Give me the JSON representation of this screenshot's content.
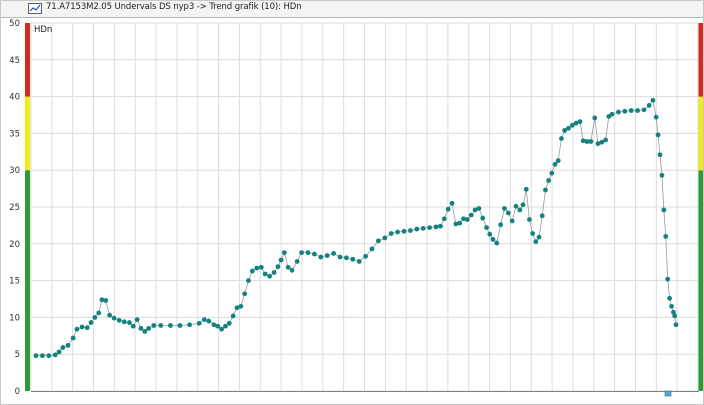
{
  "window": {
    "title": "71.A7153M2.05 Undervals DS nyp3 -> Trend grafik (10): HDn",
    "icon": "trend-chart-icon"
  },
  "colors": {
    "data_point": "#14837f",
    "data_line": "#9a9a9a",
    "grid": "#dcdcdc",
    "alarm_high": "#d42a1e",
    "warning": "#f2ea1a",
    "normal": "#2e9c32",
    "marker": "#5aa6c8"
  },
  "chart_data": {
    "type": "line",
    "ylabel": "HDn",
    "ylim": [
      0,
      50
    ],
    "yticks": [
      "0",
      "5",
      "10",
      "15",
      "20",
      "25",
      "30",
      "35",
      "40",
      "45",
      "50"
    ],
    "bands": [
      {
        "from": 0,
        "to": 30,
        "color": "#2e9c32"
      },
      {
        "from": 30,
        "to": 40,
        "color": "#f2ea1a"
      },
      {
        "from": 40,
        "to": 50,
        "color": "#d42a1e"
      }
    ],
    "xlim": [
      0,
      100
    ],
    "points": [
      [
        0,
        4.8
      ],
      [
        1,
        4.8
      ],
      [
        2,
        4.8
      ],
      [
        3,
        4.9
      ],
      [
        3.6,
        5.3
      ],
      [
        4.2,
        5.9
      ],
      [
        5,
        6.2
      ],
      [
        5.8,
        7.2
      ],
      [
        6.4,
        8.4
      ],
      [
        7.2,
        8.7
      ],
      [
        8,
        8.6
      ],
      [
        8.6,
        9.3
      ],
      [
        9.2,
        10
      ],
      [
        9.8,
        10.6
      ],
      [
        10.3,
        12.4
      ],
      [
        10.9,
        12.3
      ],
      [
        11.5,
        10.3
      ],
      [
        12.2,
        9.9
      ],
      [
        13,
        9.6
      ],
      [
        13.8,
        9.4
      ],
      [
        14.6,
        9.3
      ],
      [
        15.2,
        8.8
      ],
      [
        15.8,
        9.7
      ],
      [
        16.4,
        8.5
      ],
      [
        17,
        8.1
      ],
      [
        17.6,
        8.5
      ],
      [
        18.4,
        8.9
      ],
      [
        19.5,
        8.9
      ],
      [
        21,
        8.9
      ],
      [
        22.5,
        8.9
      ],
      [
        24,
        9
      ],
      [
        25.5,
        9.2
      ],
      [
        26.3,
        9.7
      ],
      [
        27,
        9.5
      ],
      [
        27.8,
        9
      ],
      [
        28.4,
        8.8
      ],
      [
        29,
        8.4
      ],
      [
        29.6,
        8.8
      ],
      [
        30.2,
        9.2
      ],
      [
        30.8,
        10.2
      ],
      [
        31.4,
        11.3
      ],
      [
        32,
        11.5
      ],
      [
        32.6,
        13.2
      ],
      [
        33.2,
        15
      ],
      [
        33.8,
        16.3
      ],
      [
        34.5,
        16.7
      ],
      [
        35.2,
        16.8
      ],
      [
        35.8,
        15.9
      ],
      [
        36.5,
        15.6
      ],
      [
        37.2,
        16.1
      ],
      [
        37.8,
        16.9
      ],
      [
        38.3,
        17.8
      ],
      [
        38.8,
        18.8
      ],
      [
        39.4,
        16.8
      ],
      [
        40,
        16.4
      ],
      [
        40.8,
        17.6
      ],
      [
        41.5,
        18.8
      ],
      [
        42.5,
        18.8
      ],
      [
        43.5,
        18.6
      ],
      [
        44.5,
        18.2
      ],
      [
        45.5,
        18.4
      ],
      [
        46.5,
        18.7
      ],
      [
        47.5,
        18.2
      ],
      [
        48.5,
        18.1
      ],
      [
        49.5,
        17.9
      ],
      [
        50.5,
        17.6
      ],
      [
        51.5,
        18.3
      ],
      [
        52.5,
        19.3
      ],
      [
        53.5,
        20.4
      ],
      [
        54.5,
        20.8
      ],
      [
        55.5,
        21.4
      ],
      [
        56.5,
        21.6
      ],
      [
        57.5,
        21.7
      ],
      [
        58.5,
        21.8
      ],
      [
        59.5,
        22
      ],
      [
        60.5,
        22.1
      ],
      [
        61.5,
        22.2
      ],
      [
        62.5,
        22.3
      ],
      [
        63.2,
        22.4
      ],
      [
        63.8,
        23.4
      ],
      [
        64.4,
        24.7
      ],
      [
        65,
        25.5
      ],
      [
        65.6,
        22.7
      ],
      [
        66.2,
        22.8
      ],
      [
        66.8,
        23.4
      ],
      [
        67.4,
        23.3
      ],
      [
        68,
        23.9
      ],
      [
        68.6,
        24.6
      ],
      [
        69.2,
        24.8
      ],
      [
        69.8,
        23.5
      ],
      [
        70.4,
        22.2
      ],
      [
        70.9,
        21.3
      ],
      [
        71.4,
        20.6
      ],
      [
        72,
        20.1
      ],
      [
        72.6,
        22.6
      ],
      [
        73.2,
        24.8
      ],
      [
        73.8,
        24.2
      ],
      [
        74.4,
        23.1
      ],
      [
        75,
        25.1
      ],
      [
        75.6,
        24.6
      ],
      [
        76.1,
        25.3
      ],
      [
        76.6,
        27.4
      ],
      [
        77.1,
        23.3
      ],
      [
        77.6,
        21.4
      ],
      [
        78.1,
        20.3
      ],
      [
        78.6,
        20.9
      ],
      [
        79.1,
        23.8
      ],
      [
        79.6,
        27.3
      ],
      [
        80.1,
        28.6
      ],
      [
        80.6,
        29.6
      ],
      [
        81.1,
        30.8
      ],
      [
        81.6,
        31.3
      ],
      [
        82.1,
        34.3
      ],
      [
        82.6,
        35.4
      ],
      [
        83.2,
        35.7
      ],
      [
        83.8,
        36.1
      ],
      [
        84.4,
        36.4
      ],
      [
        85,
        36.6
      ],
      [
        85.5,
        34
      ],
      [
        86.1,
        33.9
      ],
      [
        86.7,
        33.9
      ],
      [
        87.3,
        37.1
      ],
      [
        87.8,
        33.6
      ],
      [
        88.4,
        33.8
      ],
      [
        89,
        34.1
      ],
      [
        89.5,
        37.3
      ],
      [
        90,
        37.6
      ],
      [
        91,
        37.9
      ],
      [
        92,
        38
      ],
      [
        93,
        38.1
      ],
      [
        94,
        38.1
      ],
      [
        95,
        38.2
      ],
      [
        95.8,
        38.8
      ],
      [
        96.4,
        39.5
      ],
      [
        96.9,
        37.2
      ],
      [
        97.2,
        34.8
      ],
      [
        97.5,
        32.1
      ],
      [
        97.8,
        29.3
      ],
      [
        98.1,
        24.6
      ],
      [
        98.4,
        21
      ],
      [
        98.7,
        15.2
      ],
      [
        99,
        12.6
      ],
      [
        99.3,
        11.5
      ],
      [
        99.6,
        10.7
      ],
      [
        99.8,
        10.2
      ],
      [
        100,
        9
      ]
    ]
  }
}
